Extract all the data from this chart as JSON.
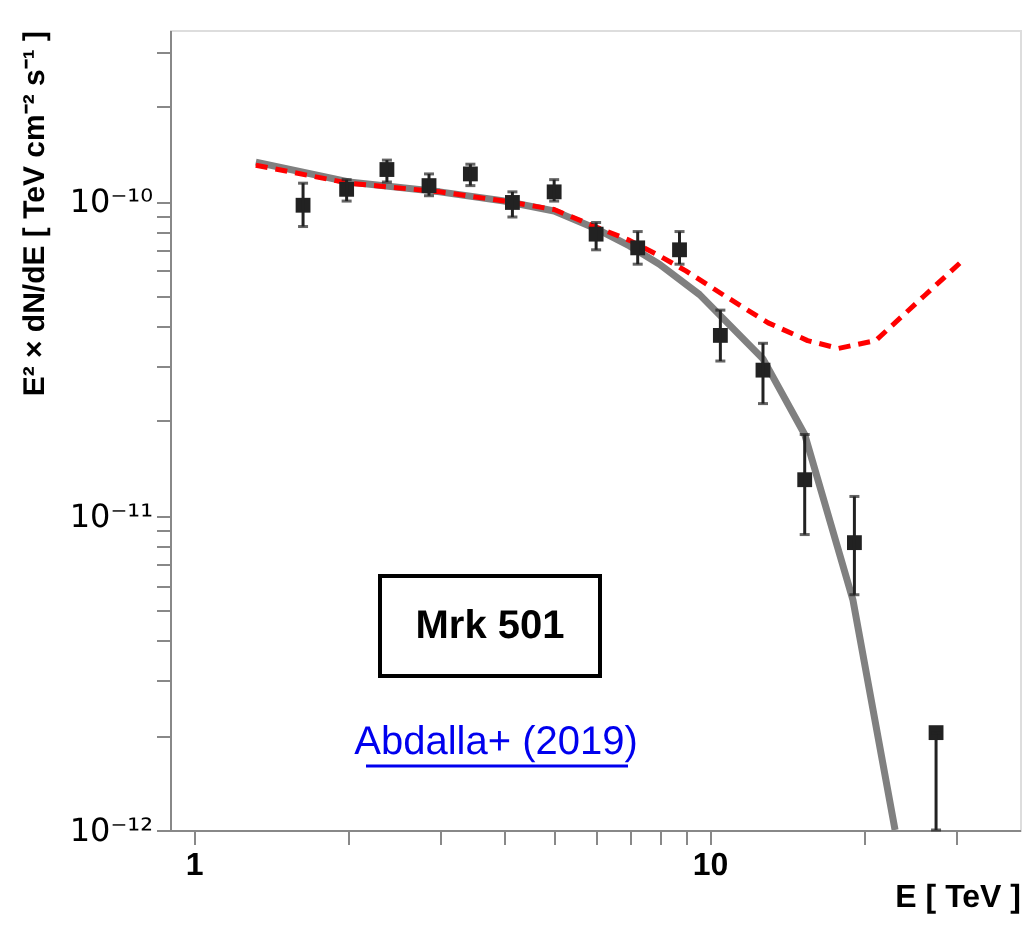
{
  "chart_data": {
    "type": "scatter",
    "xlabel": "E [ TeV ]",
    "ylabel": "E² × dN/dE [ TeV cm⁻² s⁻¹ ]",
    "log": "xy",
    "xlim": [
      0.9,
      40
    ],
    "ylim": [
      1e-12,
      3.5e-10
    ],
    "xticks": [
      {
        "value": 1,
        "label": "1"
      },
      {
        "value": 2,
        "label": null
      },
      {
        "value": 3,
        "label": null
      },
      {
        "value": 4,
        "label": null
      },
      {
        "value": 5,
        "label": null
      },
      {
        "value": 6,
        "label": null
      },
      {
        "value": 7,
        "label": null
      },
      {
        "value": 8,
        "label": null
      },
      {
        "value": 9,
        "label": null
      },
      {
        "value": 10,
        "label": "10"
      },
      {
        "value": 20,
        "label": null
      },
      {
        "value": 30,
        "label": null
      }
    ],
    "yticks": [
      {
        "value": 1e-12,
        "label": "10⁻¹²"
      },
      {
        "value": 2e-12,
        "label": null
      },
      {
        "value": 3e-12,
        "label": null
      },
      {
        "value": 4e-12,
        "label": null
      },
      {
        "value": 5e-12,
        "label": null
      },
      {
        "value": 6e-12,
        "label": null
      },
      {
        "value": 7e-12,
        "label": null
      },
      {
        "value": 8e-12,
        "label": null
      },
      {
        "value": 9e-12,
        "label": null
      },
      {
        "value": 1e-11,
        "label": "10⁻¹¹"
      },
      {
        "value": 2e-11,
        "label": null
      },
      {
        "value": 3e-11,
        "label": null
      },
      {
        "value": 4e-11,
        "label": null
      },
      {
        "value": 5e-11,
        "label": null
      },
      {
        "value": 6e-11,
        "label": null
      },
      {
        "value": 7e-11,
        "label": null
      },
      {
        "value": 8e-11,
        "label": null
      },
      {
        "value": 9e-11,
        "label": null
      },
      {
        "value": 1e-10,
        "label": "10⁻¹⁰"
      },
      {
        "value": 2e-10,
        "label": null
      },
      {
        "value": 3e-10,
        "label": null
      }
    ],
    "grid": false,
    "annotations": [
      "Mrk 501",
      "Abdalla+ (2019)"
    ],
    "series": [
      {
        "type": "line",
        "color": "#808080",
        "line_style": "solid",
        "x": [
          1.32,
          2,
          3,
          4,
          5,
          6,
          7,
          8,
          9.57,
          12.7,
          15.3,
          18.97,
          22.9
        ],
        "values": [
          1.33e-10,
          1.15e-10,
          1.07e-10,
          1e-10,
          9.3e-11,
          8.2e-11,
          7.2e-11,
          6.3e-11,
          5.04e-11,
          3.15e-11,
          1.81e-11,
          5.4e-12,
          1e-12
        ]
      },
      {
        "type": "line",
        "color": "#ff0000",
        "line_style": "dashed",
        "x": [
          1.32,
          2,
          3,
          4,
          5,
          6,
          7,
          8,
          9,
          10.7,
          13,
          15.5,
          17.8,
          21,
          26.1,
          30.9
        ],
        "values": [
          1.3e-10,
          1.14e-10,
          1.07e-10,
          1e-10,
          9.4e-11,
          8.3e-11,
          7.5e-11,
          6.7e-11,
          6e-11,
          5e-11,
          4.1e-11,
          3.6e-11,
          3.4e-11,
          3.6e-11,
          5e-11,
          6.45e-11
        ]
      },
      {
        "color": "#222222",
        "marker": "square",
        "x": [
          1.63,
          1.98,
          2.37,
          2.86,
          3.44,
          4.15,
          5.0,
          6.03,
          7.26,
          8.75,
          10.5,
          12.7,
          15.3,
          19.1,
          27.5
        ],
        "values": [
          9.7e-11,
          1.09e-10,
          1.26e-10,
          1.12e-10,
          1.22e-10,
          9.9e-11,
          1.07e-10,
          7.85e-11,
          7.1e-11,
          7e-11,
          3.74e-11,
          2.9e-11,
          1.3e-11,
          8.2e-12,
          2.04e-12
        ],
        "errors": [
          [
            8.3e-11,
            1.14e-10
          ],
          [
            1e-10,
            1.17e-10
          ],
          [
            1.15e-10,
            1.35e-10
          ],
          [
            1.04e-10,
            1.22e-10
          ],
          [
            1.12e-10,
            1.31e-10
          ],
          [
            8.9e-11,
            1.07e-10
          ],
          [
            1e-10,
            1.17e-10
          ],
          [
            7e-11,
            8.55e-11
          ],
          [
            6.3e-11,
            8e-11
          ],
          [
            6.3e-11,
            8e-11
          ],
          [
            3.1e-11,
            4.5e-11
          ],
          [
            2.27e-11,
            3.53e-11
          ],
          [
            8.7e-12,
            1.81e-11
          ],
          [
            5.6e-12,
            1.15e-11
          ],
          [
            1e-12,
            2.04e-12
          ]
        ]
      }
    ]
  }
}
